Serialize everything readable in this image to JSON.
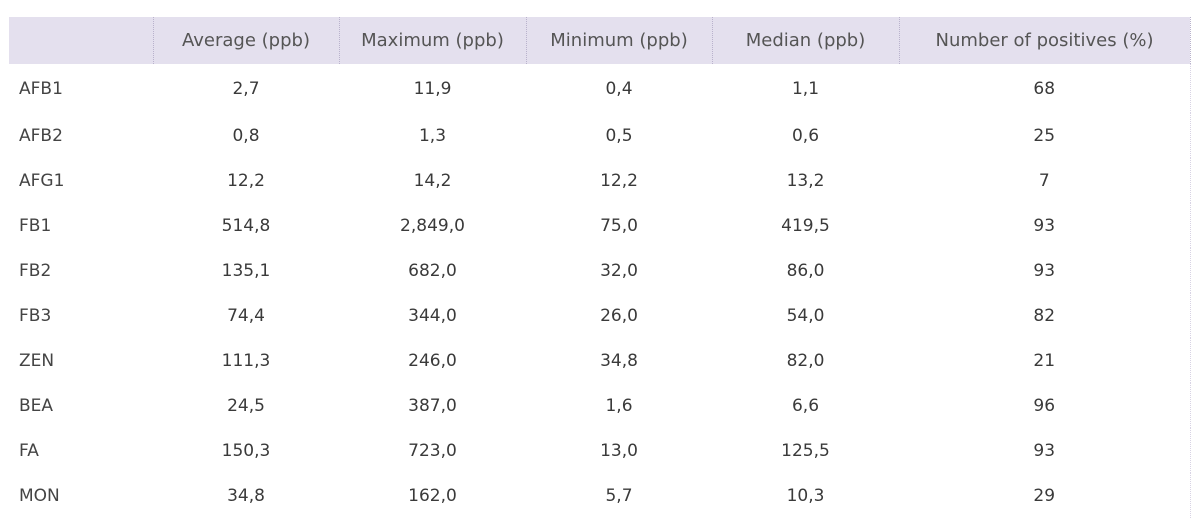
{
  "table": {
    "headers": [
      "",
      "Average (ppb)",
      "Maximum (ppb)",
      "Minimum (ppb)",
      "Median (ppb)",
      "Number of positives (%)"
    ],
    "rows": [
      {
        "label": "AFB1",
        "average": "2,7",
        "maximum": "11,9",
        "minimum": "0,4",
        "median": "1,1",
        "positives": "68"
      },
      {
        "label": "AFB2",
        "average": "0,8",
        "maximum": "1,3",
        "minimum": "0,5",
        "median": "0,6",
        "positives": "25"
      },
      {
        "label": "AFG1",
        "average": "12,2",
        "maximum": "14,2",
        "minimum": "12,2",
        "median": "13,2",
        "positives": "7"
      },
      {
        "label": "FB1",
        "average": "514,8",
        "maximum": "2,849,0",
        "minimum": "75,0",
        "median": "419,5",
        "positives": "93"
      },
      {
        "label": "FB2",
        "average": "135,1",
        "maximum": "682,0",
        "minimum": "32,0",
        "median": "86,0",
        "positives": "93"
      },
      {
        "label": "FB3",
        "average": "74,4",
        "maximum": "344,0",
        "minimum": "26,0",
        "median": "54,0",
        "positives": "82"
      },
      {
        "label": "ZEN",
        "average": "111,3",
        "maximum": "246,0",
        "minimum": "34,8",
        "median": "82,0",
        "positives": "21"
      },
      {
        "label": "BEA",
        "average": "24,5",
        "maximum": "387,0",
        "minimum": "1,6",
        "median": "6,6",
        "positives": "96"
      },
      {
        "label": "FA",
        "average": "150,3",
        "maximum": "723,0",
        "minimum": "13,0",
        "median": "125,5",
        "positives": "93"
      },
      {
        "label": "MON",
        "average": "34,8",
        "maximum": "162,0",
        "minimum": "5,7",
        "median": "10,3",
        "positives": "29"
      }
    ]
  }
}
